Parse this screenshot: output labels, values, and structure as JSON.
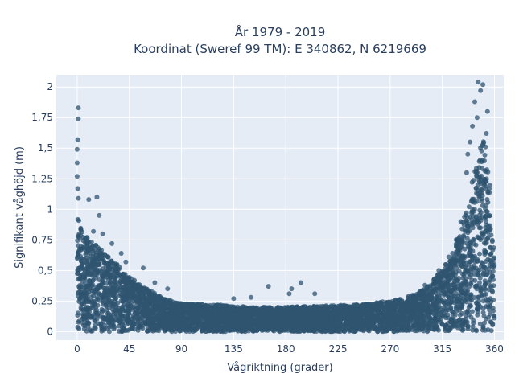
{
  "chart_data": {
    "type": "scatter",
    "title_line1": "År 1979 - 2019",
    "title_line2": "Koordinat (Sweref 99 TM): E 340862, N 6219669",
    "xlabel": "Vågriktning (grader)",
    "ylabel": "Signifikant våghöjd (m)",
    "xlim": [
      -18,
      368
    ],
    "ylim": [
      -0.07,
      2.1
    ],
    "x_ticks": [
      0,
      45,
      90,
      135,
      180,
      225,
      270,
      315,
      360
    ],
    "x_tick_labels": [
      "0",
      "45",
      "90",
      "135",
      "180",
      "225",
      "270",
      "315",
      "360"
    ],
    "y_ticks": [
      0,
      0.25,
      0.5,
      0.75,
      1,
      1.25,
      1.5,
      1.75,
      2
    ],
    "y_tick_labels": [
      "0",
      "0,25",
      "0,5",
      "0,75",
      "1",
      "1,25",
      "1,5",
      "1,75",
      "2"
    ],
    "grid": true,
    "legend": "none",
    "colors": {
      "background": "#e5ecf6",
      "grid": "#ffffff",
      "marker": "#2f5470"
    },
    "envelope": {
      "direction": [
        0,
        10,
        20,
        30,
        45,
        60,
        75,
        90,
        120,
        150,
        180,
        210,
        240,
        270,
        290,
        300,
        310,
        320,
        330,
        335,
        340,
        345,
        350,
        355,
        360
      ],
      "upper_height": [
        0.95,
        0.75,
        0.68,
        0.6,
        0.45,
        0.35,
        0.27,
        0.23,
        0.22,
        0.2,
        0.2,
        0.21,
        0.22,
        0.25,
        0.3,
        0.35,
        0.45,
        0.6,
        0.8,
        1.0,
        1.2,
        1.4,
        1.6,
        1.4,
        0.6
      ]
    },
    "outliers": [
      {
        "x": 1,
        "y": 1.83
      },
      {
        "x": 1,
        "y": 1.74
      },
      {
        "x": 0.5,
        "y": 1.57
      },
      {
        "x": 0,
        "y": 1.49
      },
      {
        "x": 0,
        "y": 1.38
      },
      {
        "x": 0,
        "y": 1.27
      },
      {
        "x": 0.5,
        "y": 1.17
      },
      {
        "x": 1,
        "y": 1.09
      },
      {
        "x": 17,
        "y": 1.1
      },
      {
        "x": 10,
        "y": 1.08
      },
      {
        "x": 19,
        "y": 0.95
      },
      {
        "x": 14,
        "y": 0.82
      },
      {
        "x": 22,
        "y": 0.8
      },
      {
        "x": 30,
        "y": 0.72
      },
      {
        "x": 38,
        "y": 0.64
      },
      {
        "x": 42,
        "y": 0.57
      },
      {
        "x": 57,
        "y": 0.52
      },
      {
        "x": 67,
        "y": 0.4
      },
      {
        "x": 78,
        "y": 0.35
      },
      {
        "x": 165,
        "y": 0.37
      },
      {
        "x": 185,
        "y": 0.35
      },
      {
        "x": 193,
        "y": 0.4
      },
      {
        "x": 183,
        "y": 0.31
      },
      {
        "x": 205,
        "y": 0.31
      },
      {
        "x": 150,
        "y": 0.28
      },
      {
        "x": 135,
        "y": 0.27
      },
      {
        "x": 300,
        "y": 0.38
      },
      {
        "x": 308,
        "y": 0.43
      },
      {
        "x": 312,
        "y": 0.5
      },
      {
        "x": 327,
        "y": 0.75
      },
      {
        "x": 331,
        "y": 0.9
      },
      {
        "x": 346,
        "y": 2.04
      },
      {
        "x": 350,
        "y": 2.02
      },
      {
        "x": 348,
        "y": 1.97
      },
      {
        "x": 343,
        "y": 1.88
      },
      {
        "x": 345,
        "y": 1.75
      },
      {
        "x": 354,
        "y": 1.8
      },
      {
        "x": 341,
        "y": 1.68
      },
      {
        "x": 339,
        "y": 1.55
      },
      {
        "x": 337,
        "y": 1.45
      },
      {
        "x": 336,
        "y": 1.3
      },
      {
        "x": 353,
        "y": 1.62
      }
    ]
  }
}
